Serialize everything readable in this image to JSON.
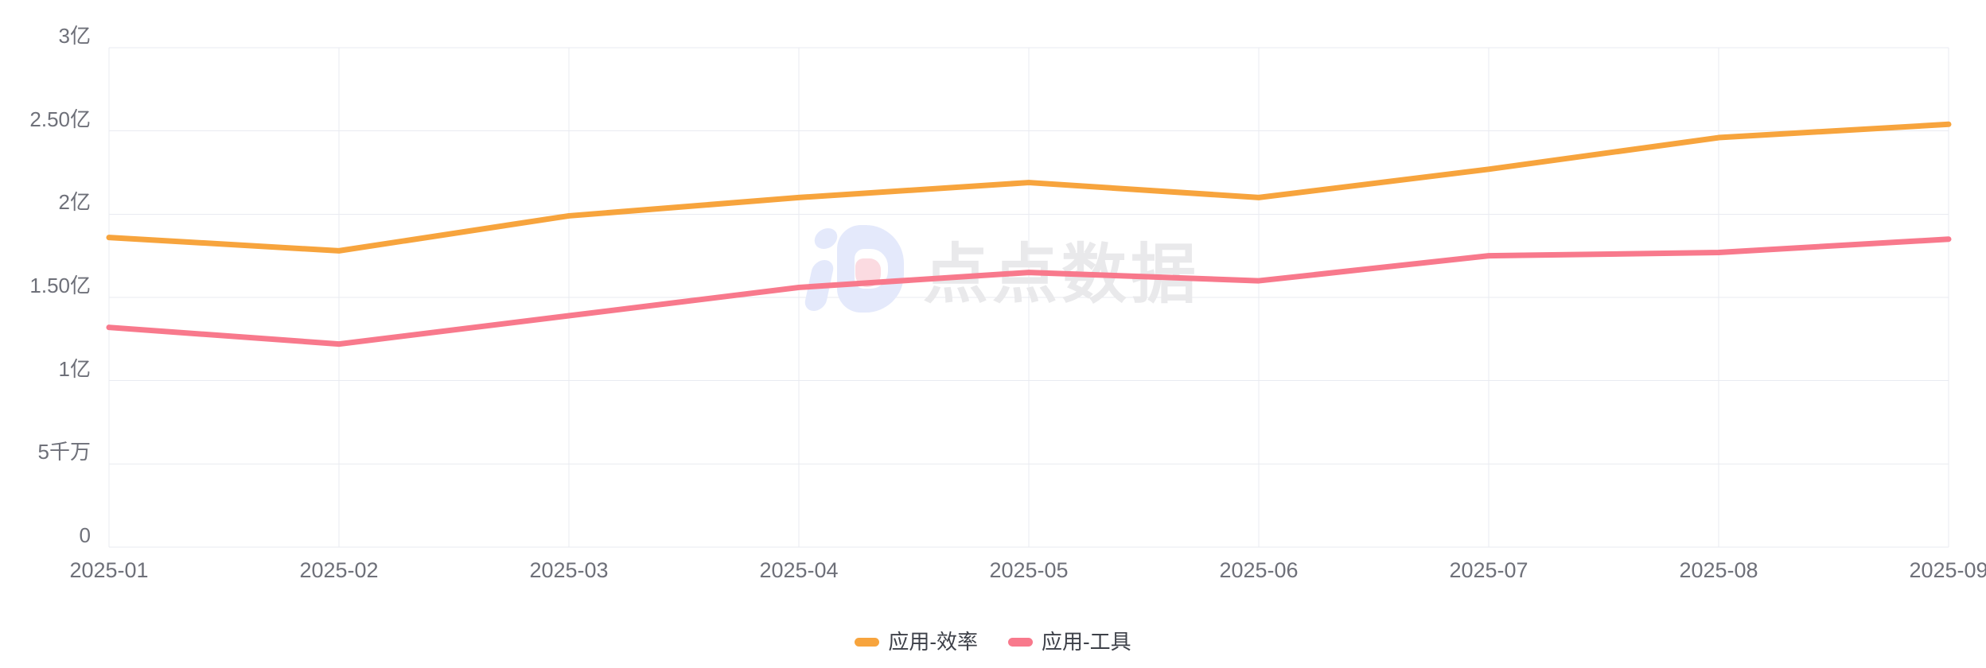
{
  "watermark": {
    "text": "点点数据",
    "logo": "diandian-logo"
  },
  "chart_data": {
    "type": "line",
    "x": [
      "2025-01",
      "2025-02",
      "2025-03",
      "2025-04",
      "2025-05",
      "2025-06",
      "2025-07",
      "2025-08",
      "2025-09"
    ],
    "series": [
      {
        "name": "应用-效率",
        "color": "#F7A43D",
        "values": [
          1.86,
          1.78,
          1.99,
          2.1,
          2.19,
          2.1,
          2.27,
          2.46,
          2.54
        ]
      },
      {
        "name": "应用-工具",
        "color": "#F8798C",
        "values": [
          1.32,
          1.22,
          1.39,
          1.56,
          1.65,
          1.6,
          1.75,
          1.77,
          1.85
        ]
      }
    ],
    "unit": "亿",
    "y_ticks": [
      {
        "value": 3,
        "label": "3亿"
      },
      {
        "value": 2.5,
        "label": "2.50亿"
      },
      {
        "value": 2,
        "label": "2亿"
      },
      {
        "value": 1.5,
        "label": "1.50亿"
      },
      {
        "value": 1,
        "label": "1亿"
      },
      {
        "value": 0.5,
        "label": "5千万"
      },
      {
        "value": 0,
        "label": "0"
      }
    ],
    "ylim": [
      0,
      3
    ],
    "grid": true,
    "legend_position": "bottom",
    "colors": {
      "grid_line": "#E9EBF1",
      "axis_label": "#6E7079",
      "legend_text": "#3D4048",
      "watermark_text": "#E9E9EB",
      "watermark_logo": "#E4E9FB",
      "watermark_logo_accent": "#FBDBE1",
      "background": "#FFFFFF"
    }
  }
}
